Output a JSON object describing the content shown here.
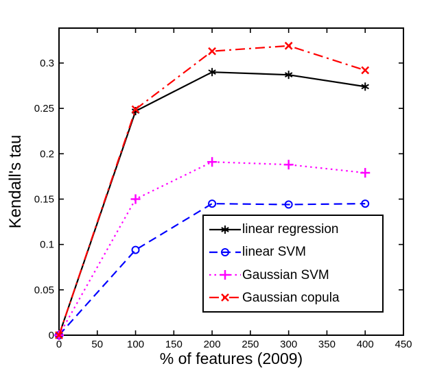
{
  "figure": {
    "background": "#ffffff",
    "axis_color": "#000000"
  },
  "chart_data": {
    "type": "line",
    "title": "",
    "xlabel": "% of features (2009)",
    "ylabel": "Kendall's tau",
    "xlim": [
      0,
      450
    ],
    "ylim": [
      0,
      0.3385
    ],
    "grid": false,
    "xticks": [
      0,
      50,
      100,
      150,
      200,
      250,
      300,
      350,
      400,
      450
    ],
    "xtick_labels": [
      "0",
      "50",
      "100",
      "150",
      "200",
      "250",
      "300",
      "350",
      "400",
      "450"
    ],
    "yticks": [
      0,
      0.05,
      0.1,
      0.15,
      0.2,
      0.25,
      0.3
    ],
    "ytick_labels": [
      "0",
      "0.05",
      "0.1",
      "0.15",
      "0.2",
      "0.25",
      "0.3"
    ],
    "x": [
      0,
      100,
      200,
      300,
      400
    ],
    "series": [
      {
        "name": "linear regression",
        "color": "#000000",
        "line_style": "solid",
        "marker": "asterisk",
        "values": [
          0,
          0.247,
          0.29,
          0.287,
          0.274
        ]
      },
      {
        "name": "linear SVM",
        "color": "#0000ff",
        "line_style": "dashed",
        "marker": "circle",
        "values": [
          0,
          0.094,
          0.145,
          0.144,
          0.145
        ]
      },
      {
        "name": "Gaussian SVM",
        "color": "#ff00ff",
        "line_style": "dotted",
        "marker": "plus",
        "values": [
          0,
          0.15,
          0.191,
          0.188,
          0.179
        ]
      },
      {
        "name": "Gaussian copula",
        "color": "#ff0000",
        "line_style": "dashdot",
        "marker": "x",
        "values": [
          0,
          0.249,
          0.313,
          0.319,
          0.292
        ]
      }
    ],
    "legend": {
      "position": "inside-bottom-right",
      "entries": [
        "linear regression",
        "linear SVM",
        "Gaussian SVM",
        "Gaussian copula"
      ]
    }
  }
}
